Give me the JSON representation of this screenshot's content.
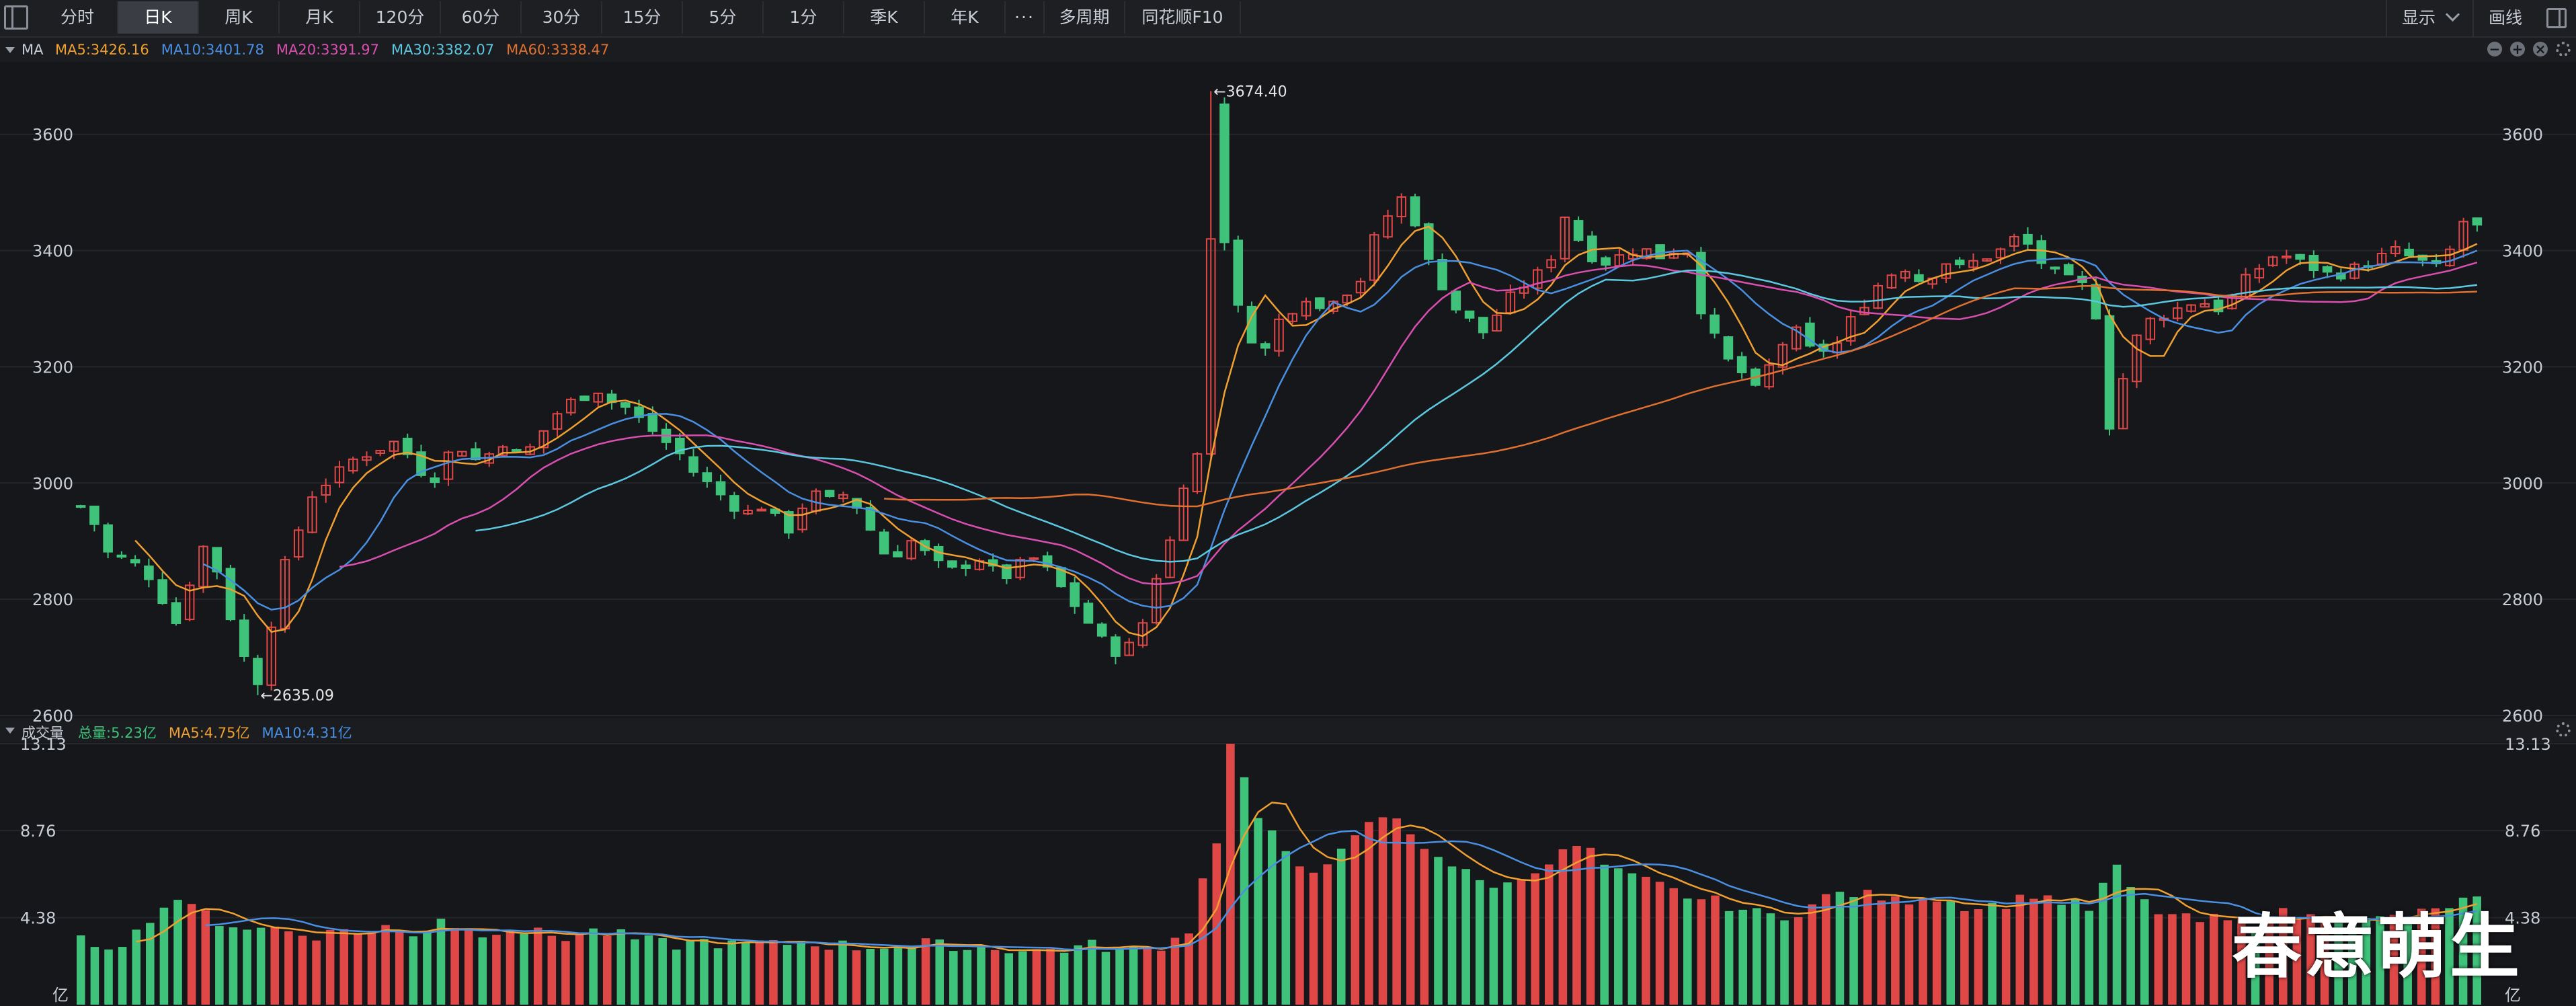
{
  "toolbar": {
    "periods": [
      "分时",
      "日K",
      "周K",
      "月K",
      "120分",
      "60分",
      "30分",
      "15分",
      "5分",
      "1分",
      "季K",
      "年K",
      "···",
      "多周期",
      "同花顺F10"
    ],
    "active_period": "日K",
    "show_label": "显示",
    "draw_label": "画线"
  },
  "price_legend": {
    "title": "MA",
    "items": [
      {
        "text": "MA5:3426.16",
        "color": "#f0a030"
      },
      {
        "text": "MA10:3401.78",
        "color": "#4a90e2"
      },
      {
        "text": "MA20:3391.97",
        "color": "#d94fb0"
      },
      {
        "text": "MA30:3382.07",
        "color": "#5cc8e0"
      },
      {
        "text": "MA60:3338.47",
        "color": "#e07030"
      }
    ]
  },
  "volume_legend": {
    "title": "成交量",
    "items": [
      {
        "text": "总量:5.23亿",
        "color": "#3fc27a"
      },
      {
        "text": "MA5:4.75亿",
        "color": "#f0a030"
      },
      {
        "text": "MA10:4.31亿",
        "color": "#4a90e2"
      }
    ]
  },
  "watermark": "春意萌生",
  "chart_data": [
    {
      "type": "candlestick",
      "yticks": [
        2600,
        2800,
        3000,
        3200,
        3400,
        3600
      ],
      "ylim": [
        2600,
        3720
      ],
      "high_annotation": "←3674.40",
      "low_annotation": "←2635.09",
      "high": 3674.4,
      "low": 2635.09,
      "colors": {
        "up": "#e04848",
        "down": "#3fc27a"
      },
      "ma_lines": [
        {
          "name": "MA5",
          "color": "#f0a030",
          "period": 5
        },
        {
          "name": "MA10",
          "color": "#4a90e2",
          "period": 10
        },
        {
          "name": "MA20",
          "color": "#d94fb0",
          "period": 20
        },
        {
          "name": "MA30",
          "color": "#5cc8e0",
          "period": 30
        },
        {
          "name": "MA60",
          "color": "#e07030",
          "period": 60
        }
      ],
      "close_path": [
        2960,
        2930,
        2880,
        2870,
        2860,
        2840,
        2800,
        2760,
        2830,
        2890,
        2850,
        2770,
        2700,
        2660,
        2760,
        2860,
        2920,
        2980,
        3000,
        3020,
        3040,
        3050,
        3060,
        3070,
        3050,
        3020,
        3010,
        3050,
        3060,
        3040,
        3050,
        3070,
        3050,
        3060,
        3090,
        3120,
        3140,
        3150,
        3160,
        3140,
        3130,
        3110,
        3090,
        3070,
        3050,
        3020,
        3000,
        2980,
        2960,
        2950,
        2960,
        2940,
        2920,
        2960,
        2980,
        2970,
        2980,
        2960,
        2920,
        2880,
        2880,
        2900,
        2880,
        2860,
        2850,
        2860,
        2870,
        2850,
        2840,
        2860,
        2870,
        2850,
        2820,
        2790,
        2760,
        2730,
        2710,
        2720,
        2760,
        2840,
        2900,
        3000,
        3050,
        3660,
        3420,
        3300,
        3250,
        3230,
        3280,
        3300,
        3320,
        3300,
        3320,
        3330,
        3350,
        3420,
        3460,
        3490,
        3450,
        3380,
        3340,
        3300,
        3280,
        3260,
        3290,
        3320,
        3340,
        3360,
        3390,
        3460,
        3420,
        3390,
        3380,
        3390,
        3400,
        3400,
        3390,
        3400,
        3400,
        3300,
        3250,
        3210,
        3190,
        3160,
        3200,
        3240,
        3260,
        3230,
        3230,
        3240,
        3280,
        3310,
        3340,
        3360,
        3370,
        3350,
        3360,
        3380,
        3370,
        3380,
        3390,
        3400,
        3420,
        3410,
        3380,
        3360,
        3350,
        3340,
        3290,
        3100,
        3180,
        3250,
        3280,
        3290,
        3300,
        3310,
        3310,
        3300,
        3320,
        3350,
        3370,
        3390,
        3390,
        3380,
        3370,
        3360,
        3360,
        3370,
        3380,
        3390,
        3400,
        3390,
        3380,
        3370,
        3400,
        3450,
        3440
      ]
    },
    {
      "type": "bar",
      "title": "成交量",
      "yticks": [
        4.38,
        8.76,
        13.13
      ],
      "ylim": [
        0,
        13.13
      ],
      "unit": "亿",
      "colors": {
        "up": "#e04848",
        "down": "#3fc27a"
      },
      "volume_path": [
        3.2,
        3.1,
        3.0,
        3.2,
        3.6,
        4.4,
        4.9,
        5.4,
        4.8,
        4.6,
        4.2,
        4.0,
        3.9,
        3.8,
        3.9,
        3.7,
        3.6,
        3.5,
        3.6,
        3.8,
        3.7,
        3.6,
        3.9,
        3.7,
        3.6,
        3.8,
        4.4,
        4.0,
        3.7,
        3.6,
        3.8,
        3.9,
        3.7,
        3.6,
        3.5,
        3.4,
        3.6,
        3.7,
        3.6,
        3.5,
        3.3,
        3.2,
        3.1,
        3.0,
        3.1,
        3.2,
        3.1,
        3.0,
        3.0,
        3.1,
        3.0,
        3.1,
        3.2,
        3.1,
        3.0,
        3.0,
        2.9,
        2.9,
        3.0,
        3.0,
        2.9,
        3.1,
        3.0,
        3.0,
        2.8,
        2.9,
        2.9,
        2.8,
        2.7,
        2.7,
        2.8,
        2.8,
        2.9,
        3.0,
        2.9,
        2.8,
        2.7,
        2.8,
        3.0,
        3.3,
        3.8,
        6.5,
        8.0,
        13.1,
        11.3,
        9.4,
        8.5,
        7.5,
        7.0,
        6.9,
        7.3,
        7.6,
        8.3,
        9.0,
        9.5,
        9.2,
        8.6,
        8.0,
        7.6,
        7.0,
        6.6,
        6.2,
        6.1,
        6.0,
        6.4,
        6.9,
        7.2,
        7.6,
        8.0,
        7.7,
        7.0,
        6.6,
        6.4,
        6.2,
        6.0,
        5.7,
        5.5,
        5.3,
        5.2,
        5.0,
        4.8,
        4.6,
        4.5,
        4.5,
        4.7,
        5.0,
        5.4,
        5.6,
        5.6,
        5.5,
        5.4,
        5.2,
        5.3,
        5.5,
        5.4,
        5.2,
        5.0,
        4.9,
        5.0,
        5.1,
        5.3,
        5.6,
        5.4,
        5.2,
        5.0,
        4.8,
        6.0,
        6.8,
        5.9,
        5.1,
        4.7,
        4.5,
        4.3,
        4.2,
        4.3,
        4.2,
        4.1,
        4.2,
        4.4,
        4.6,
        4.5,
        4.4,
        4.5,
        4.4,
        4.3,
        4.2,
        4.3,
        4.4,
        4.5,
        4.6,
        4.7,
        5.0,
        5.2,
        5.3
      ]
    }
  ]
}
